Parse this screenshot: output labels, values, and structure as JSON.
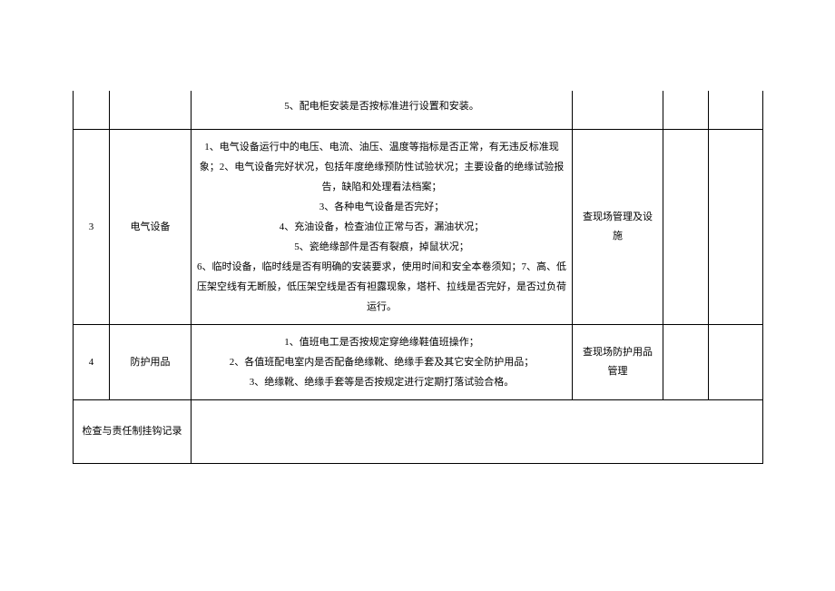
{
  "rows": [
    {
      "num": "",
      "category": "",
      "content": "5、配电柜安装是否按标准进行设置和安装。",
      "method": "",
      "partial": true
    },
    {
      "num": "3",
      "category": "电气设备",
      "content": "1、电气设备运行中的电压、电流、油压、温度等指标是否正常，有无违反标准现象；2、电气设备完好状况，包括年度绝缘预防性试验状况；主要设备的绝缘试验报告，缺陷和处理看法档案；\n3、各种电气设备是否完好；\n4、充油设备，检查油位正常与否，漏油状况；\n5、瓷绝缘部件是否有裂痕，掉鼠状况；\n6、临时设备，临时线是否有明确的安装要求，使用时间和安全本卷须知；7、高、低压架空线有无断股，低压架空线是否有袒露现象，塔杆、拉线是否完好，是否过负荷运行。",
      "method": "查现场管理及设施",
      "partial": false
    },
    {
      "num": "4",
      "category": "防护用品",
      "content": "1、值班电工是否按规定穿绝缘鞋值班操作；\n2、各值班配电室内是否配备绝缘靴、绝缘手套及其它安全防护用品；\n3、绝缘靴、绝缘手套等是否按规定进行定期打落试验合格。",
      "method": "查现场防护用品管理",
      "partial": false
    }
  ],
  "footer": {
    "label": "检查与责任制挂钩记录",
    "value": ""
  }
}
